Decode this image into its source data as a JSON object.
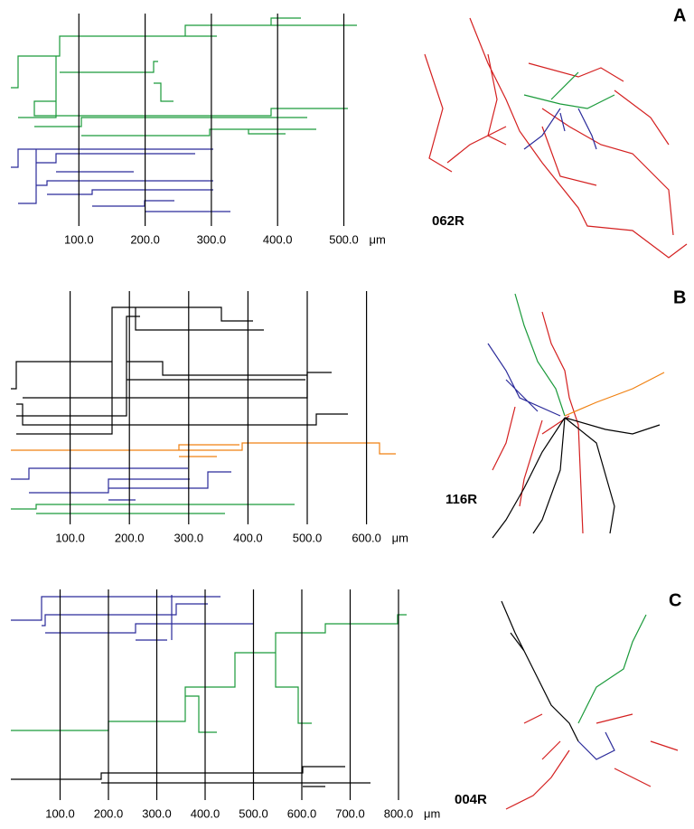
{
  "panels": [
    {
      "label": "A",
      "cell": "062R",
      "unit": "μm",
      "xticks": [
        {
          "value": 100,
          "label": "100.0"
        },
        {
          "value": 200,
          "label": "200.0"
        },
        {
          "value": 300,
          "label": "300.0"
        },
        {
          "value": 400,
          "label": "400.0"
        },
        {
          "value": 500,
          "label": "500.0"
        }
      ]
    },
    {
      "label": "B",
      "cell": "116R",
      "unit": "μm",
      "xticks": [
        {
          "value": 100,
          "label": "100.0"
        },
        {
          "value": 200,
          "label": "200.0"
        },
        {
          "value": 300,
          "label": "300.0"
        },
        {
          "value": 400,
          "label": "400.0"
        },
        {
          "value": 500,
          "label": "500.0"
        },
        {
          "value": 600,
          "label": "600.0"
        }
      ]
    },
    {
      "label": "C",
      "cell": "004R",
      "unit": "μm",
      "xticks": [
        {
          "value": 100,
          "label": "100.0"
        },
        {
          "value": 200,
          "label": "200.0"
        },
        {
          "value": 300,
          "label": "300.0"
        },
        {
          "value": 400,
          "label": "400.0"
        },
        {
          "value": 500,
          "label": "500.0"
        },
        {
          "value": 600,
          "label": "600.0"
        },
        {
          "value": 700,
          "label": "700.0"
        },
        {
          "value": 800,
          "label": "800.0"
        }
      ]
    }
  ]
}
